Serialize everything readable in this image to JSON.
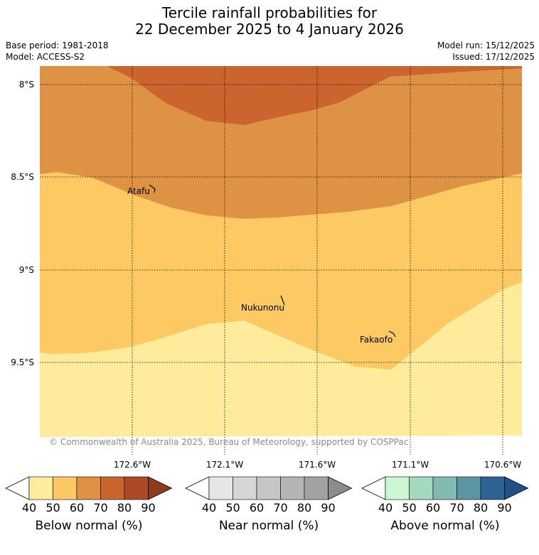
{
  "header": {
    "title_line1": "Tercile rainfall probabilities for",
    "title_line2": "22 December 2025 to 4 January 2026",
    "base_period": "Base period: 1981-2018",
    "model": "Model: ACCESS-S2",
    "model_run": "Model run: 15/12/2025",
    "issued": "Issued: 17/12/2025"
  },
  "map": {
    "lat_labels": [
      "8°S",
      "8.5°S",
      "9°S",
      "9.5°S"
    ],
    "lon_labels": [
      "172.6°W",
      "172.1°W",
      "171.6°W",
      "171.1°W",
      "170.6°W"
    ],
    "places": [
      {
        "name": "Atafu"
      },
      {
        "name": "Nukunonu"
      },
      {
        "name": "Fakaofo"
      }
    ],
    "copyright": "© Commonwealth of Australia 2025, Bureau of Meteorology, supported by COSPPac",
    "zones": [
      {
        "category": "below",
        "range": "70-80",
        "color": "#cc6430"
      },
      {
        "category": "below",
        "range": "60-70",
        "color": "#de9244"
      },
      {
        "category": "below",
        "range": "50-60",
        "color": "#fcc962"
      },
      {
        "category": "below",
        "range": "40-50",
        "color": "#feeb9c"
      }
    ]
  },
  "colorbars": [
    {
      "label": "Below normal (%)",
      "ticks": [
        "40",
        "50",
        "60",
        "70",
        "80",
        "90"
      ],
      "colors": [
        "#ffffff",
        "#feeb9c",
        "#fcc962",
        "#de9244",
        "#cc6430",
        "#ad4a26",
        "#8c3a20"
      ]
    },
    {
      "label": "Near normal (%)",
      "ticks": [
        "40",
        "50",
        "60",
        "70",
        "80",
        "90"
      ],
      "colors": [
        "#ffffff",
        "#e6e6e6",
        "#d6d6d6",
        "#c6c6c6",
        "#b4b4b4",
        "#a2a2a2",
        "#8c8c8c"
      ]
    },
    {
      "label": "Above normal (%)",
      "ticks": [
        "40",
        "50",
        "60",
        "70",
        "80",
        "90"
      ],
      "colors": [
        "#ffffff",
        "#cbf7d2",
        "#a3d9bd",
        "#82b9b1",
        "#5c95a2",
        "#2e6396",
        "#214f88"
      ]
    }
  ]
}
